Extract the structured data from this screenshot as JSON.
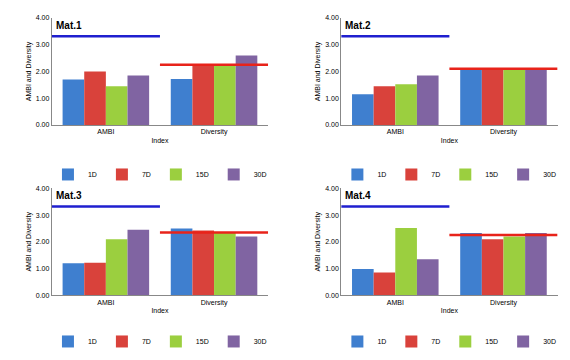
{
  "chart_data": [
    {
      "type": "bar",
      "title": "Mat.1",
      "x_label": "Index",
      "y_label": "AMBI and Diversity",
      "categories": [
        "AMBI",
        "Diversity"
      ],
      "series": [
        {
          "name": "1D",
          "color": "#3f7fcf",
          "values": [
            1.7,
            1.72
          ]
        },
        {
          "name": "7D",
          "color": "#d9423b",
          "values": [
            2.0,
            2.25
          ]
        },
        {
          "name": "15D",
          "color": "#9bcf3f",
          "values": [
            1.45,
            2.2
          ]
        },
        {
          "name": "30D",
          "color": "#8064a2",
          "values": [
            1.85,
            2.6
          ]
        }
      ],
      "ylim": [
        0,
        4
      ],
      "yticks": [
        {
          "value": 0,
          "label": "0.00"
        },
        {
          "value": 1,
          "label": "1.00"
        },
        {
          "value": 2,
          "label": "2.00"
        },
        {
          "value": 3,
          "label": "3.00"
        },
        {
          "value": 4,
          "label": "4.00"
        }
      ],
      "grid": false,
      "legend": "bottom",
      "ref_lines": [
        {
          "category": "AMBI",
          "value": 3.32,
          "color": "#1f1fcf"
        },
        {
          "category": "Diversity",
          "value": 2.25,
          "color": "#e8231a"
        }
      ]
    },
    {
      "type": "bar",
      "title": "Mat.2",
      "x_label": "Index",
      "y_label": "AMBI and Diversity",
      "categories": [
        "AMBI",
        "Diversity"
      ],
      "series": [
        {
          "name": "1D",
          "color": "#3f7fcf",
          "values": [
            1.15,
            2.05
          ]
        },
        {
          "name": "7D",
          "color": "#d9423b",
          "values": [
            1.45,
            2.07
          ]
        },
        {
          "name": "15D",
          "color": "#9bcf3f",
          "values": [
            1.52,
            2.07
          ]
        },
        {
          "name": "30D",
          "color": "#8064a2",
          "values": [
            1.85,
            2.07
          ]
        }
      ],
      "ylim": [
        0,
        4
      ],
      "yticks": [
        {
          "value": 0,
          "label": "0.00"
        },
        {
          "value": 1,
          "label": "1.00"
        },
        {
          "value": 2,
          "label": "2.00"
        },
        {
          "value": 3,
          "label": "3.00"
        },
        {
          "value": 4,
          "label": "4.00"
        }
      ],
      "grid": false,
      "legend": "bottom",
      "ref_lines": [
        {
          "category": "AMBI",
          "value": 3.32,
          "color": "#1f1fcf"
        },
        {
          "category": "Diversity",
          "value": 2.1,
          "color": "#e8231a"
        }
      ]
    },
    {
      "type": "bar",
      "title": "Mat.3",
      "x_label": "Index",
      "y_label": "AMBI and Diversity",
      "categories": [
        "AMBI",
        "Diversity"
      ],
      "series": [
        {
          "name": "1D",
          "color": "#3f7fcf",
          "values": [
            1.2,
            2.5
          ]
        },
        {
          "name": "7D",
          "color": "#d9423b",
          "values": [
            1.22,
            2.42
          ]
        },
        {
          "name": "15D",
          "color": "#9bcf3f",
          "values": [
            2.1,
            2.35
          ]
        },
        {
          "name": "30D",
          "color": "#8064a2",
          "values": [
            2.45,
            2.2
          ]
        }
      ],
      "ylim": [
        0,
        4
      ],
      "yticks": [
        {
          "value": 0,
          "label": "0.00"
        },
        {
          "value": 1,
          "label": "1.00"
        },
        {
          "value": 2,
          "label": "2.00"
        },
        {
          "value": 3,
          "label": "3.00"
        },
        {
          "value": 4,
          "label": "4.00"
        }
      ],
      "grid": false,
      "legend": "bottom",
      "ref_lines": [
        {
          "category": "AMBI",
          "value": 3.32,
          "color": "#1f1fcf"
        },
        {
          "category": "Diversity",
          "value": 2.35,
          "color": "#e8231a"
        }
      ]
    },
    {
      "type": "bar",
      "title": "Mat.4",
      "x_label": "Index",
      "y_label": "AMBI and Diversity",
      "categories": [
        "AMBI",
        "Diversity"
      ],
      "series": [
        {
          "name": "1D",
          "color": "#3f7fcf",
          "values": [
            0.98,
            2.33
          ]
        },
        {
          "name": "7D",
          "color": "#d9423b",
          "values": [
            0.85,
            2.1
          ]
        },
        {
          "name": "15D",
          "color": "#9bcf3f",
          "values": [
            2.52,
            2.2
          ]
        },
        {
          "name": "30D",
          "color": "#8064a2",
          "values": [
            1.35,
            2.33
          ]
        }
      ],
      "ylim": [
        0,
        4
      ],
      "yticks": [
        {
          "value": 0,
          "label": "0.00"
        },
        {
          "value": 1,
          "label": "1.00"
        },
        {
          "value": 2,
          "label": "2.00"
        },
        {
          "value": 3,
          "label": "3.00"
        },
        {
          "value": 4,
          "label": "4.00"
        }
      ],
      "grid": false,
      "legend": "bottom",
      "ref_lines": [
        {
          "category": "AMBI",
          "value": 3.32,
          "color": "#1f1fcf"
        },
        {
          "category": "Diversity",
          "value": 2.25,
          "color": "#e8231a"
        }
      ]
    }
  ]
}
